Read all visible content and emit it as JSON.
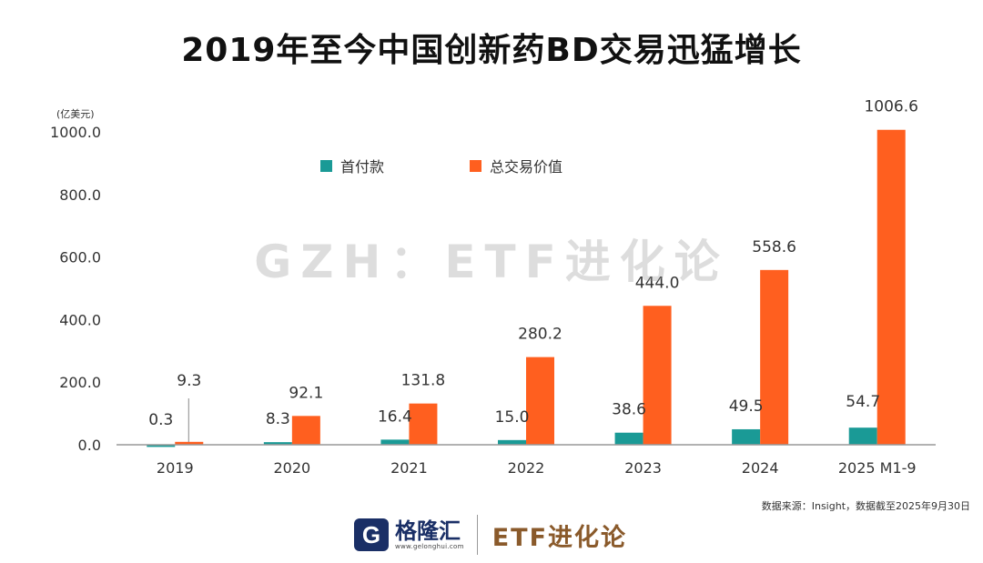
{
  "title": "2019年至今中国创新药BD交易迅猛增长",
  "watermark": "GZH：ETF进化论",
  "colors": {
    "upfront": "#1a9a96",
    "total": "#ff5f1f",
    "axis": "#999999"
  },
  "chart_data": {
    "type": "bar",
    "unit_label": "(亿美元)",
    "categories": [
      "2019",
      "2020",
      "2021",
      "2022",
      "2023",
      "2024",
      "2025 M1-9"
    ],
    "series": [
      {
        "name": "首付款",
        "values": [
          0.3,
          8.3,
          16.4,
          15.0,
          38.6,
          49.5,
          54.7
        ],
        "labels": [
          "0.3",
          "8.3",
          "16.4",
          "15.0",
          "38.6",
          "49.5",
          "54.7"
        ]
      },
      {
        "name": "总交易价值",
        "values": [
          9.3,
          92.1,
          131.8,
          280.2,
          444.0,
          558.6,
          1006.6
        ],
        "labels": [
          "9.3",
          "92.1",
          "131.8",
          "280.2",
          "444.0",
          "558.6",
          "1006.6"
        ]
      }
    ],
    "yticks": [
      "0.0",
      "200.0",
      "400.0",
      "600.0",
      "800.0",
      "1000.0"
    ],
    "ylim": [
      0,
      1000
    ],
    "legend_position": "top-center"
  },
  "source": "数据来源：Insight，数据截至2025年9月30日",
  "footer": {
    "logo_letter": "G",
    "logo_name": "格隆汇",
    "logo_url": "www.gelonghui.com",
    "brand": "ETF进化论"
  }
}
